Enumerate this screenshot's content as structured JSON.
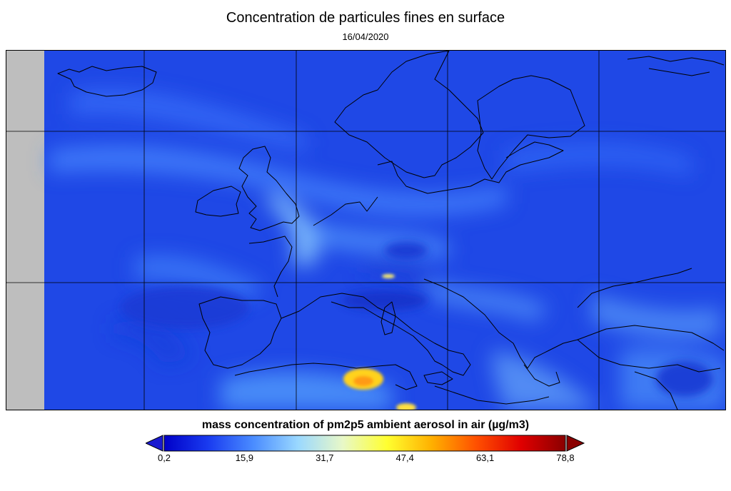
{
  "header": {
    "title": "Concentration de particules fines en surface",
    "date": "16/04/2020"
  },
  "map": {
    "region": "Europe and North Africa",
    "grid": true,
    "nodata_color": "#bebebe",
    "background_color": "#1f48e6",
    "hotspot_colors": [
      "#ffd21a",
      "#ff9a16",
      "#fff06a"
    ]
  },
  "colorbar": {
    "title": "mass concentration of pm2p5 ambient aerosol in air (µg/m3)",
    "min": 0.2,
    "max": 78.8,
    "ticks": [
      "0,2",
      "15,9",
      "31,7",
      "47,4",
      "63,1",
      "78,8"
    ],
    "colors": [
      "#0000c8",
      "#1a3cf0",
      "#4a8cff",
      "#9ad8ff",
      "#e8f8c8",
      "#ffff30",
      "#ffb000",
      "#ff5000",
      "#e00000",
      "#8a0000"
    ],
    "extend_low_color": "#1a1ad0",
    "extend_high_color": "#8a0000"
  }
}
